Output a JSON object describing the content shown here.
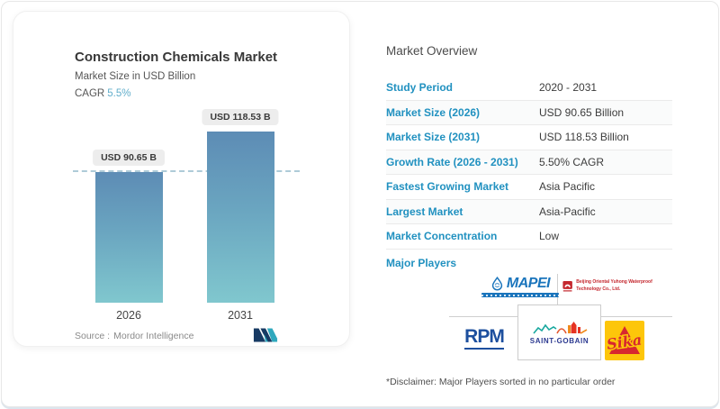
{
  "chart_data": {
    "type": "bar",
    "title": "Construction Chemicals Market",
    "subtitle": "Market Size in USD Billion",
    "cagr_label": "CAGR",
    "cagr_value": "5.5%",
    "categories": [
      "2026",
      "2031"
    ],
    "values": [
      90.65,
      118.53
    ],
    "bar_labels": [
      "USD 90.65 B",
      "USD 118.53 B"
    ],
    "ylabel": "Market Size in USD Billion",
    "ylim": [
      0,
      130
    ],
    "legend": "none",
    "grid": "single dashed reference line at first bar top",
    "bar_gradient_top": "#5d8cb5",
    "bar_gradient_bottom": "#80c7ce"
  },
  "source": {
    "label": "Source :",
    "value": "Mordor Intelligence",
    "logo_icon": "mordor-intelligence-logo"
  },
  "overview": {
    "heading": "Market Overview",
    "rows": [
      {
        "label": "Study Period",
        "value": "2020 - 2031"
      },
      {
        "label": "Market Size (2026)",
        "value": "USD 90.65 Billion"
      },
      {
        "label": "Market Size (2031)",
        "value": "USD 118.53 Billion"
      },
      {
        "label": "Growth Rate (2026 - 2031)",
        "value": "5.50% CAGR"
      },
      {
        "label": "Fastest Growing Market",
        "value": "Asia Pacific"
      },
      {
        "label": "Largest Market",
        "value": "Asia-Pacific"
      },
      {
        "label": "Market Concentration",
        "value": "Low"
      }
    ],
    "major_players_label": "Major Players",
    "major_players": [
      "MAPEI",
      "Beijing Oriental Yuhong Waterproof Technology Co., Ltd.",
      "RPM",
      "SAINT-GOBAIN",
      "Sika"
    ],
    "disclaimer": "*Disclaimer: Major Players sorted in no particular order"
  },
  "colors": {
    "accent_blue": "#2191c0",
    "cagr_teal": "#62aecb",
    "bar_top": "#5d8cb5",
    "bar_bottom": "#80c7ce",
    "mapei_blue": "#1b75bc",
    "yuhong_red": "#c4272e",
    "rpm_navy": "#1d4f9e",
    "saint_gobain_navy": "#2b3990",
    "sika_yellow": "#fdc60a",
    "sika_red": "#d7282f"
  }
}
